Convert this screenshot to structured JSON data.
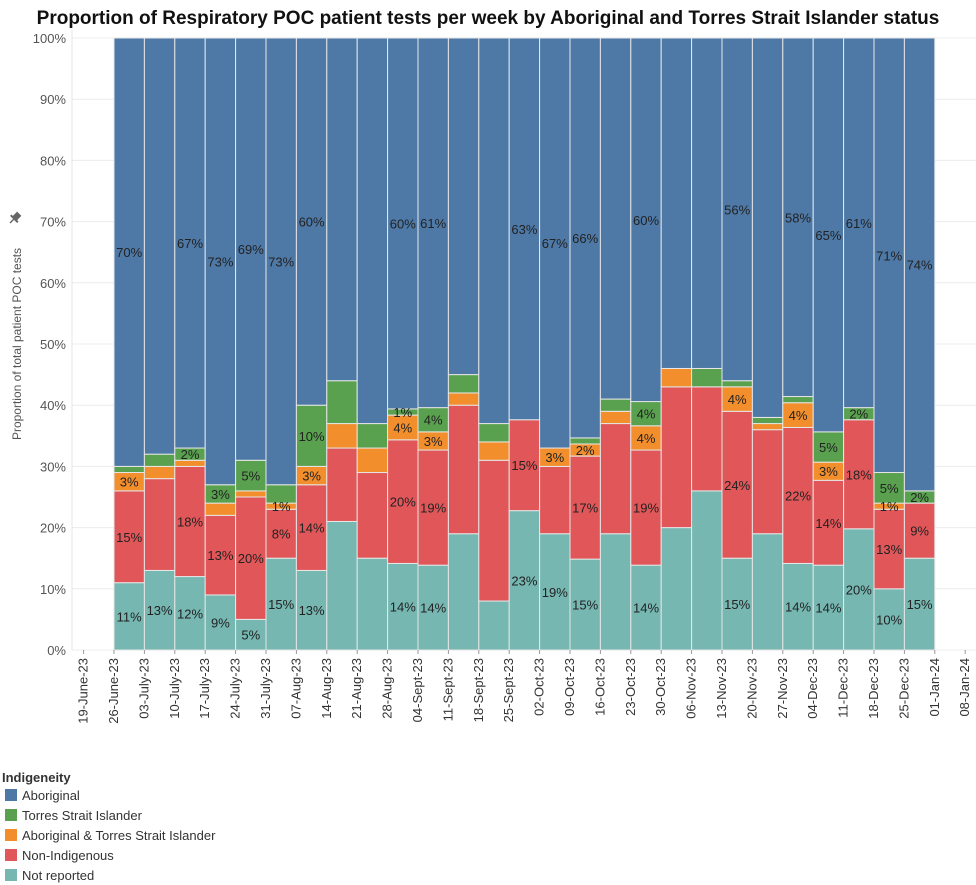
{
  "chart_data": {
    "type": "bar",
    "stacked": true,
    "title": "Proportion of Respiratory POC patient tests per week by Aboriginal and Torres Strait Islander status",
    "xlabel": "",
    "ylabel": "Proportion of total patient POC tests",
    "ylim": [
      0,
      100
    ],
    "yticks": [
      "0%",
      "10%",
      "20%",
      "30%",
      "40%",
      "50%",
      "60%",
      "70%",
      "80%",
      "90%",
      "100%"
    ],
    "grid": true,
    "x_ticks": [
      "19-June-23",
      "26-June-23",
      "03-July-23",
      "10-July-23",
      "17-July-23",
      "24-July-23",
      "31-July-23",
      "07-Aug-23",
      "14-Aug-23",
      "21-Aug-23",
      "28-Aug-23",
      "04-Sept-23",
      "11-Sept-23",
      "18-Sept-23",
      "25-Sept-23",
      "02-Oct-23",
      "09-Oct-23",
      "16-Oct-23",
      "23-Oct-23",
      "30-Oct-23",
      "06-Nov-23",
      "13-Nov-23",
      "20-Nov-23",
      "27-Nov-23",
      "04-Dec-23",
      "11-Dec-23",
      "18-Dec-23",
      "25-Dec-23",
      "01-Jan-24",
      "08-Jan-24"
    ],
    "categories": [
      "26-June-23",
      "03-July-23",
      "10-July-23",
      "17-July-23",
      "24-July-23",
      "31-July-23",
      "07-Aug-23",
      "14-Aug-23",
      "21-Aug-23",
      "28-Aug-23",
      "04-Sept-23",
      "11-Sept-23",
      "18-Sept-23",
      "25-Sept-23",
      "02-Oct-23",
      "09-Oct-23",
      "16-Oct-23",
      "23-Oct-23",
      "30-Oct-23",
      "06-Nov-23",
      "13-Nov-23",
      "20-Nov-23",
      "27-Nov-23",
      "04-Dec-23",
      "11-Dec-23",
      "18-Dec-23",
      "25-Dec-23"
    ],
    "legend_title": "Indigeneity",
    "legend_position": "bottom-left",
    "series": [
      {
        "name": "Not reported",
        "color": "#76b7b2",
        "values": [
          11,
          13,
          12,
          9,
          5,
          15,
          13,
          21,
          15,
          14,
          14,
          19,
          8,
          23,
          19,
          15,
          19,
          14,
          20,
          26,
          15,
          19,
          14,
          14,
          20,
          10,
          15
        ],
        "labels": [
          "11%",
          "13%",
          "12%",
          "9%",
          "5%",
          "15%",
          "13%",
          "",
          "",
          "14%",
          "14%",
          "",
          "",
          "23%",
          "19%",
          "15%",
          "",
          "14%",
          "",
          "",
          "15%",
          "",
          "14%",
          "14%",
          "20%",
          "10%",
          "15%"
        ]
      },
      {
        "name": "Non-Indigenous",
        "color": "#e15759",
        "values": [
          15,
          15,
          18,
          13,
          20,
          8,
          14,
          12,
          14,
          20,
          19,
          21,
          23,
          15,
          11,
          17,
          18,
          19,
          23,
          17,
          24,
          17,
          22,
          14,
          18,
          13,
          9
        ],
        "labels": [
          "15%",
          "",
          "18%",
          "13%",
          "20%",
          "8%",
          "14%",
          "",
          "",
          "20%",
          "19%",
          "",
          "",
          "15%",
          "",
          "17%",
          "",
          "19%",
          "",
          "",
          "24%",
          "",
          "22%",
          "14%",
          "18%",
          "13%",
          "9%"
        ]
      },
      {
        "name": "Aboriginal & Torres Strait Islander",
        "color": "#f28e2b",
        "values": [
          3,
          2,
          1,
          2,
          1,
          1,
          3,
          4,
          4,
          4,
          3,
          2,
          3,
          0,
          3,
          2,
          2,
          4,
          3,
          0,
          4,
          1,
          4,
          3,
          0,
          1,
          0
        ],
        "labels": [
          "3%",
          "",
          "",
          "",
          "",
          "1%",
          "3%",
          "",
          "",
          "4%",
          "3%",
          "",
          "",
          "",
          "3%",
          "2%",
          "",
          "4%",
          "",
          "",
          "4%",
          "",
          "4%",
          "3%",
          "",
          "1%",
          ""
        ]
      },
      {
        "name": "Torres Strait Islander",
        "color": "#59a14f",
        "values": [
          1,
          2,
          2,
          3,
          5,
          3,
          10,
          7,
          4,
          1,
          4,
          3,
          3,
          0,
          0,
          1,
          2,
          4,
          0,
          3,
          1,
          1,
          1,
          5,
          2,
          5,
          2
        ],
        "labels": [
          "",
          "",
          "2%",
          "3%",
          "5%",
          "",
          "10%",
          "",
          "",
          "1%",
          "4%",
          "",
          "",
          "",
          "",
          "",
          "",
          "4%",
          "",
          "",
          "",
          "",
          "",
          "5%",
          "2%",
          "5%",
          "2%"
        ]
      },
      {
        "name": "Aboriginal",
        "color": "#4e79a7",
        "values": [
          70,
          68,
          67,
          73,
          69,
          73,
          60,
          56,
          63,
          60,
          61,
          55,
          63,
          63,
          67,
          66,
          59,
          60,
          54,
          54,
          56,
          62,
          58,
          65,
          61,
          71,
          74
        ],
        "labels": [
          "70%",
          "",
          "67%",
          "73%",
          "69%",
          "73%",
          "60%",
          "",
          "",
          "60%",
          "61%",
          "",
          "",
          "63%",
          "67%",
          "66%",
          "",
          "60%",
          "",
          "",
          "56%",
          "",
          "58%",
          "65%",
          "61%",
          "71%",
          "74%"
        ]
      }
    ]
  }
}
